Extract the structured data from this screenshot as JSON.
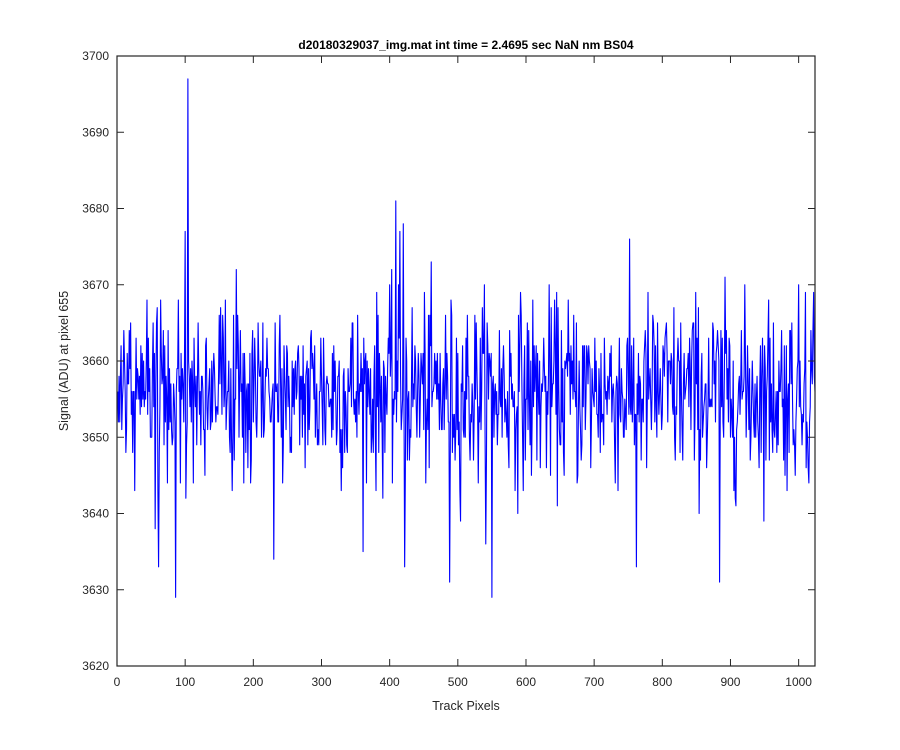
{
  "chart_data": {
    "type": "line",
    "title": "d20180329037_img.mat int time = 2.4695 sec  NaN nm BS04",
    "xlabel": "Track Pixels",
    "ylabel": "Signal (ADU) at pixel 655",
    "xlim": [
      0,
      1024
    ],
    "ylim": [
      3620,
      3700
    ],
    "x_ticks": [
      0,
      100,
      200,
      300,
      400,
      500,
      600,
      700,
      800,
      900,
      1000
    ],
    "y_ticks": [
      3620,
      3630,
      3640,
      3650,
      3660,
      3670,
      3680,
      3690,
      3700
    ],
    "grid": false,
    "line_color": "#0000ff",
    "series": [
      {
        "x_start": 1,
        "x_step": 1,
        "n_points": 1024,
        "mean": 3656,
        "approx_noise_std": 6,
        "notable_points": [
          {
            "x": 104,
            "y": 3697
          },
          {
            "x": 86,
            "y": 3629
          },
          {
            "x": 61,
            "y": 3633
          },
          {
            "x": 409,
            "y": 3681
          },
          {
            "x": 550,
            "y": 3629
          },
          {
            "x": 884,
            "y": 3631
          },
          {
            "x": 488,
            "y": 3631
          },
          {
            "x": 762,
            "y": 3633
          },
          {
            "x": 422,
            "y": 3633
          },
          {
            "x": 230,
            "y": 3634
          },
          {
            "x": 56,
            "y": 3638
          },
          {
            "x": 100,
            "y": 3677
          },
          {
            "x": 415,
            "y": 3677
          },
          {
            "x": 420,
            "y": 3678
          },
          {
            "x": 1010,
            "y": 3669
          },
          {
            "x": 1022,
            "y": 3669
          },
          {
            "x": 1,
            "y": 3656
          },
          {
            "x": 1024,
            "y": 3656
          }
        ]
      }
    ]
  }
}
